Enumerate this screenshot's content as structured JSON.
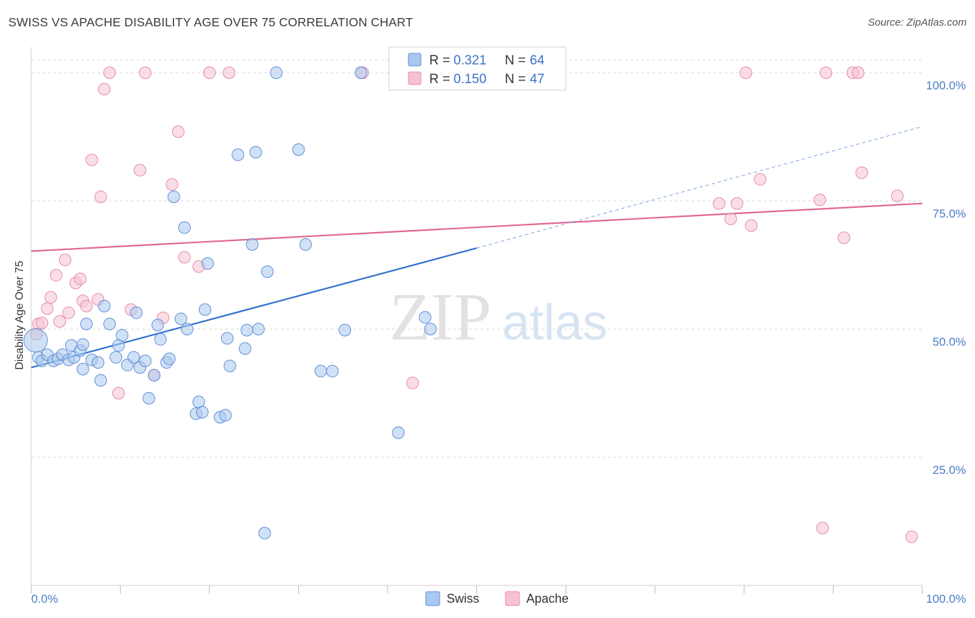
{
  "header": {
    "title": "SWISS VS APACHE DISABILITY AGE OVER 75 CORRELATION CHART",
    "source": "Source: ZipAtlas.com"
  },
  "watermark": {
    "zip": "ZIP",
    "atlas": "atlas"
  },
  "colors": {
    "swiss_fill": "#a9c8ef",
    "swiss_stroke": "#5f8fd6",
    "swiss_line": "#2f6fcf",
    "apache_fill": "#f6c2d2",
    "apache_stroke": "#e68aa6",
    "apache_line": "#e0688f",
    "grid": "#d8d8d8",
    "tick_label": "#4a7cc7"
  },
  "legend": {
    "swiss": {
      "r_label": "R = ",
      "r_value": "0.321",
      "n_label": "N = ",
      "n_value": "64"
    },
    "apache": {
      "r_label": "R = ",
      "r_value": "0.150",
      "n_label": "N = ",
      "n_value": "47"
    }
  },
  "bottom_legend": {
    "swiss": "Swiss",
    "apache": "Apache"
  },
  "chart_data": {
    "type": "scatter",
    "title": "SWISS VS APACHE DISABILITY AGE OVER 75 CORRELATION CHART",
    "ylabel": "Disability Age Over 75",
    "xlabel": "",
    "xlim": [
      0,
      100
    ],
    "ylim": [
      0,
      105
    ],
    "x_tick_labels": {
      "left": "0.0%",
      "right": "100.0%"
    },
    "y_ticks": [
      {
        "value": 25,
        "label": "25.0%"
      },
      {
        "value": 50,
        "label": "50.0%"
      },
      {
        "value": 75,
        "label": "75.0%"
      },
      {
        "value": 100,
        "label": "100.0%"
      }
    ],
    "grid": true,
    "legend_position": "top-center",
    "series": [
      {
        "name": "Swiss",
        "r": 0.321,
        "n": 64,
        "trend": {
          "x0": 0,
          "y0": 42.5,
          "x1": 50,
          "y1": 65.8,
          "dashed_to_x": 100,
          "dashed_to_y": 89.5
        },
        "points": [
          [
            0.5,
            47.8,
            "large"
          ],
          [
            0.8,
            44.5
          ],
          [
            1.2,
            43.8
          ],
          [
            1.8,
            45.0
          ],
          [
            2.5,
            43.8
          ],
          [
            3.0,
            44.2
          ],
          [
            3.5,
            45.0
          ],
          [
            4.2,
            44.0
          ],
          [
            4.8,
            44.5
          ],
          [
            4.5,
            46.8
          ],
          [
            5.5,
            45.8
          ],
          [
            5.8,
            47.0
          ],
          [
            5.8,
            42.2
          ],
          [
            6.2,
            51.0
          ],
          [
            6.8,
            44.0
          ],
          [
            7.5,
            43.5
          ],
          [
            7.8,
            40.0
          ],
          [
            8.2,
            54.5
          ],
          [
            8.8,
            51.0
          ],
          [
            9.5,
            44.5
          ],
          [
            9.8,
            46.8
          ],
          [
            10.2,
            48.8
          ],
          [
            10.8,
            43.0
          ],
          [
            11.5,
            44.5
          ],
          [
            11.8,
            53.2
          ],
          [
            12.2,
            42.5
          ],
          [
            12.8,
            43.8
          ],
          [
            13.2,
            36.5
          ],
          [
            13.8,
            41.0
          ],
          [
            14.2,
            50.8
          ],
          [
            14.5,
            48.0
          ],
          [
            15.2,
            43.5
          ],
          [
            15.5,
            44.2
          ],
          [
            16.0,
            75.8
          ],
          [
            16.8,
            52.0
          ],
          [
            17.2,
            69.8
          ],
          [
            17.5,
            50.0
          ],
          [
            18.5,
            33.5
          ],
          [
            18.8,
            35.8
          ],
          [
            19.2,
            33.8
          ],
          [
            19.5,
            53.8
          ],
          [
            19.8,
            62.8
          ],
          [
            21.2,
            32.8
          ],
          [
            21.8,
            33.2
          ],
          [
            22.0,
            48.2
          ],
          [
            22.3,
            42.8
          ],
          [
            23.2,
            84.0
          ],
          [
            24.0,
            46.2
          ],
          [
            24.2,
            49.8
          ],
          [
            24.8,
            66.5
          ],
          [
            25.2,
            84.5
          ],
          [
            25.5,
            50.0
          ],
          [
            26.5,
            61.2
          ],
          [
            26.2,
            10.2
          ],
          [
            27.5,
            100.0
          ],
          [
            30.0,
            85.0
          ],
          [
            30.8,
            66.5
          ],
          [
            32.5,
            41.8
          ],
          [
            33.8,
            41.8
          ],
          [
            35.2,
            49.8
          ],
          [
            37.0,
            100.0
          ],
          [
            41.2,
            29.8
          ],
          [
            44.2,
            52.3
          ],
          [
            44.8,
            50.0
          ]
        ]
      },
      {
        "name": "Apache",
        "r": 0.15,
        "n": 47,
        "trend": {
          "x0": 0,
          "y0": 65.2,
          "x1": 100,
          "y1": 74.5
        },
        "points": [
          [
            0.6,
            49.0
          ],
          [
            0.8,
            51.0
          ],
          [
            1.2,
            51.2
          ],
          [
            1.8,
            54.0
          ],
          [
            2.2,
            56.2
          ],
          [
            2.8,
            60.5
          ],
          [
            3.2,
            51.5
          ],
          [
            3.8,
            63.5
          ],
          [
            4.2,
            53.2
          ],
          [
            5.0,
            59.0
          ],
          [
            5.5,
            59.8
          ],
          [
            5.8,
            55.5
          ],
          [
            6.2,
            54.5
          ],
          [
            6.8,
            83.0
          ],
          [
            7.5,
            55.8
          ],
          [
            7.8,
            75.8
          ],
          [
            8.2,
            96.8
          ],
          [
            8.8,
            100.0
          ],
          [
            9.8,
            37.5
          ],
          [
            11.2,
            53.8
          ],
          [
            12.2,
            81.0
          ],
          [
            12.8,
            100.0
          ],
          [
            13.8,
            41.0
          ],
          [
            14.8,
            52.2
          ],
          [
            15.8,
            78.2
          ],
          [
            16.5,
            88.5
          ],
          [
            17.2,
            64.0
          ],
          [
            18.8,
            62.2
          ],
          [
            20.0,
            100.0
          ],
          [
            22.2,
            100.0
          ],
          [
            37.2,
            100.0
          ],
          [
            42.8,
            39.5
          ],
          [
            77.2,
            74.5
          ],
          [
            78.5,
            71.5
          ],
          [
            79.2,
            74.5
          ],
          [
            80.2,
            100.0
          ],
          [
            80.8,
            70.2
          ],
          [
            81.8,
            79.2
          ],
          [
            88.5,
            75.2
          ],
          [
            88.8,
            11.2
          ],
          [
            89.2,
            100.0
          ],
          [
            91.2,
            67.8
          ],
          [
            92.2,
            100.0
          ],
          [
            92.8,
            100.0
          ],
          [
            93.2,
            80.5
          ],
          [
            97.2,
            76.0
          ],
          [
            98.8,
            9.5
          ]
        ]
      }
    ]
  }
}
